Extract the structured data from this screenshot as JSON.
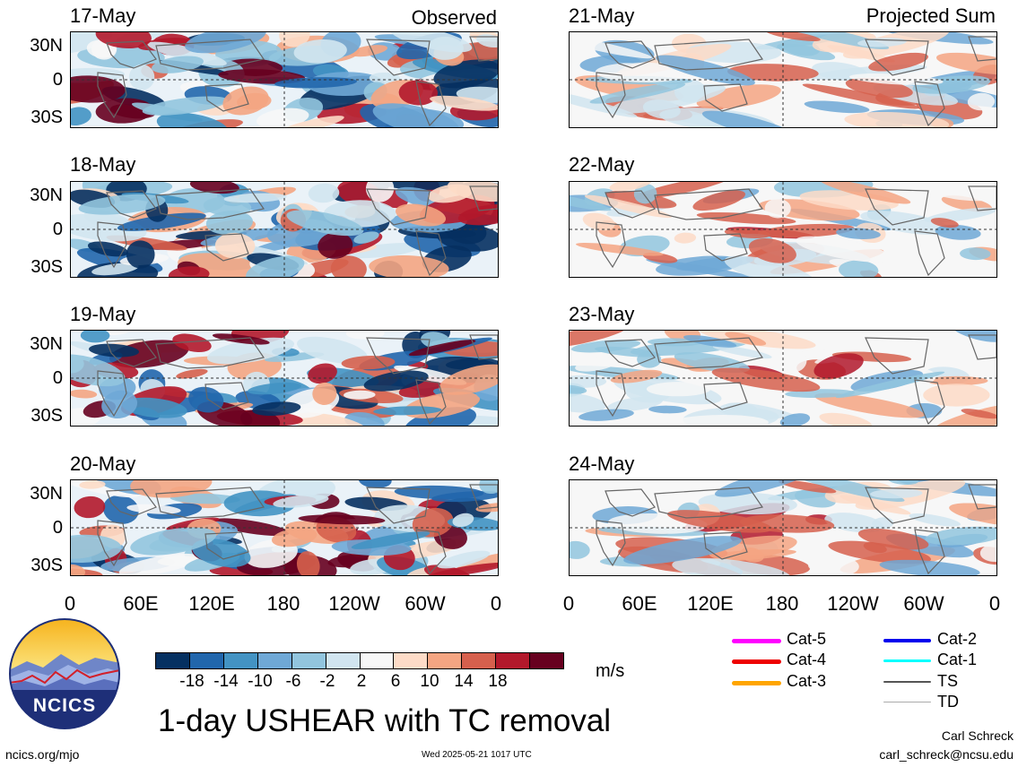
{
  "panels_left": [
    {
      "date": "17-May",
      "tag": "Observed"
    },
    {
      "date": "18-May",
      "tag": ""
    },
    {
      "date": "19-May",
      "tag": ""
    },
    {
      "date": "20-May",
      "tag": ""
    }
  ],
  "panels_right": [
    {
      "date": "21-May",
      "tag": "Projected Sum"
    },
    {
      "date": "22-May",
      "tag": ""
    },
    {
      "date": "23-May",
      "tag": ""
    },
    {
      "date": "24-May",
      "tag": ""
    }
  ],
  "y_labels": [
    "30N",
    "0",
    "30S"
  ],
  "x_labels": [
    "0",
    "60E",
    "120E",
    "180",
    "120W",
    "60W",
    "0"
  ],
  "colorbar": {
    "colors": [
      "#053061",
      "#2166ac",
      "#4393c3",
      "#6fa8d6",
      "#92c5de",
      "#d1e5f0",
      "#f7f7f7",
      "#fddbc7",
      "#f4a582",
      "#d6604d",
      "#b2182b",
      "#67001f"
    ],
    "labels": [
      "-18",
      "-14",
      "-10",
      "-6",
      "-2",
      "2",
      "6",
      "10",
      "14",
      "18"
    ],
    "units": "m/s"
  },
  "legend": [
    {
      "label": "Cat-5",
      "color": "#ff00ff"
    },
    {
      "label": "Cat-4",
      "color": "#ee0000"
    },
    {
      "label": "Cat-3",
      "color": "#ffa500"
    },
    {
      "label": "Cat-2",
      "color": "#0000ee"
    },
    {
      "label": "Cat-1",
      "color": "#00ffff"
    },
    {
      "label": "TS",
      "color": "#555555"
    },
    {
      "label": "TD",
      "color": "#aaaaaa"
    }
  ],
  "logo_text": "NCICS",
  "main_title": "1-day USHEAR with TC removal",
  "credit_name": "Carl Schreck",
  "credit_email": "carl_schreck@ncsu.edu",
  "footer_left": "ncics.org/mjo",
  "footer_center": "Wed 2025-05-21 1017 UTC"
}
